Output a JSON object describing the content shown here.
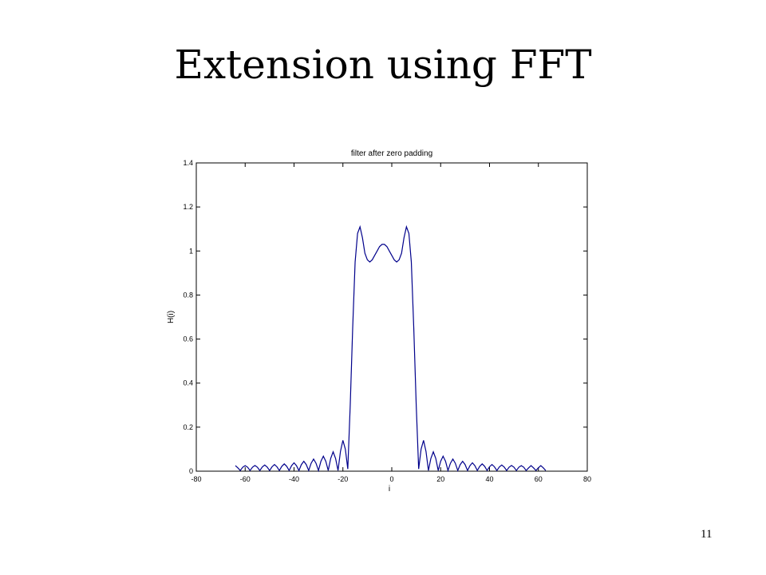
{
  "slide": {
    "title": "Extension using FFT",
    "page_number": "11"
  },
  "chart_data": {
    "type": "line",
    "title": "filter after zero padding",
    "xlabel": "i",
    "ylabel": "H(i)",
    "xlim": [
      -80,
      80
    ],
    "ylim": [
      0,
      1.4
    ],
    "x_ticks": [
      -80,
      -60,
      -40,
      -20,
      0,
      20,
      40,
      60,
      80
    ],
    "y_ticks": [
      0,
      0.2,
      0.4,
      0.6,
      0.8,
      1,
      1.2,
      1.4
    ],
    "x_tick_labels": [
      "-80",
      "-60",
      "-40",
      "-20",
      "0",
      "20",
      "40",
      "60",
      "80"
    ],
    "y_tick_labels": [
      "0",
      "0.2",
      "0.4",
      "0.6",
      "0.8",
      "1",
      "1.2",
      "1.4"
    ],
    "grid": false,
    "line_color": "#00008b",
    "series": [
      {
        "x": [
          -64,
          -63,
          -62,
          -61,
          -60,
          -59,
          -58,
          -57,
          -56,
          -55,
          -54,
          -53,
          -52,
          -51,
          -50,
          -49,
          -48,
          -47,
          -46,
          -45,
          -44,
          -43,
          -42,
          -41,
          -40,
          -39,
          -38,
          -37,
          -36,
          -35,
          -34,
          -33,
          -32,
          -31,
          -30,
          -29,
          -28,
          -27,
          -26,
          -25,
          -24,
          -23,
          -22,
          -21,
          -20,
          -19,
          -18,
          -17,
          -16,
          -15,
          -14,
          -13,
          -12,
          -11,
          -10,
          -9,
          -8,
          -7,
          -6,
          -5,
          -4,
          -3,
          -2,
          -1,
          0,
          1,
          2,
          3,
          4,
          5,
          6,
          7,
          8,
          9,
          10,
          11,
          12,
          13,
          14,
          15,
          16,
          17,
          18,
          19,
          20,
          21,
          22,
          23,
          24,
          25,
          26,
          27,
          28,
          29,
          30,
          31,
          32,
          33,
          34,
          35,
          36,
          37,
          38,
          39,
          40,
          41,
          42,
          43,
          44,
          45,
          46,
          47,
          48,
          49,
          50,
          51,
          52,
          53,
          54,
          55,
          56,
          57,
          58,
          59,
          60,
          61,
          62,
          63
        ],
        "y": [
          0.025,
          0.015,
          0.003,
          0.018,
          0.025,
          0.018,
          0.003,
          0.018,
          0.026,
          0.018,
          0.003,
          0.019,
          0.028,
          0.019,
          0.003,
          0.02,
          0.03,
          0.02,
          0.003,
          0.022,
          0.033,
          0.022,
          0.003,
          0.025,
          0.038,
          0.025,
          0.003,
          0.03,
          0.045,
          0.03,
          0.003,
          0.036,
          0.055,
          0.036,
          0.003,
          0.045,
          0.068,
          0.045,
          0.003,
          0.058,
          0.088,
          0.058,
          0.003,
          0.09,
          0.14,
          0.1,
          0.01,
          0.3,
          0.65,
          0.95,
          1.08,
          1.11,
          1.06,
          0.99,
          0.96,
          0.95,
          0.96,
          0.98,
          1.0,
          1.02,
          1.03,
          1.03,
          1.02,
          1.0,
          0.98,
          0.96,
          0.95,
          0.96,
          0.99,
          1.06,
          1.11,
          1.08,
          0.95,
          0.65,
          0.3,
          0.01,
          0.1,
          0.14,
          0.09,
          0.003,
          0.058,
          0.088,
          0.058,
          0.003,
          0.045,
          0.068,
          0.045,
          0.003,
          0.036,
          0.055,
          0.036,
          0.003,
          0.03,
          0.045,
          0.03,
          0.003,
          0.025,
          0.038,
          0.025,
          0.003,
          0.022,
          0.033,
          0.022,
          0.003,
          0.02,
          0.03,
          0.02,
          0.003,
          0.019,
          0.028,
          0.019,
          0.003,
          0.018,
          0.026,
          0.018,
          0.003,
          0.018,
          0.025,
          0.018,
          0.003,
          0.015,
          0.025,
          0.015,
          0.003,
          0.015,
          0.025,
          0.015,
          0.003
        ]
      }
    ]
  }
}
